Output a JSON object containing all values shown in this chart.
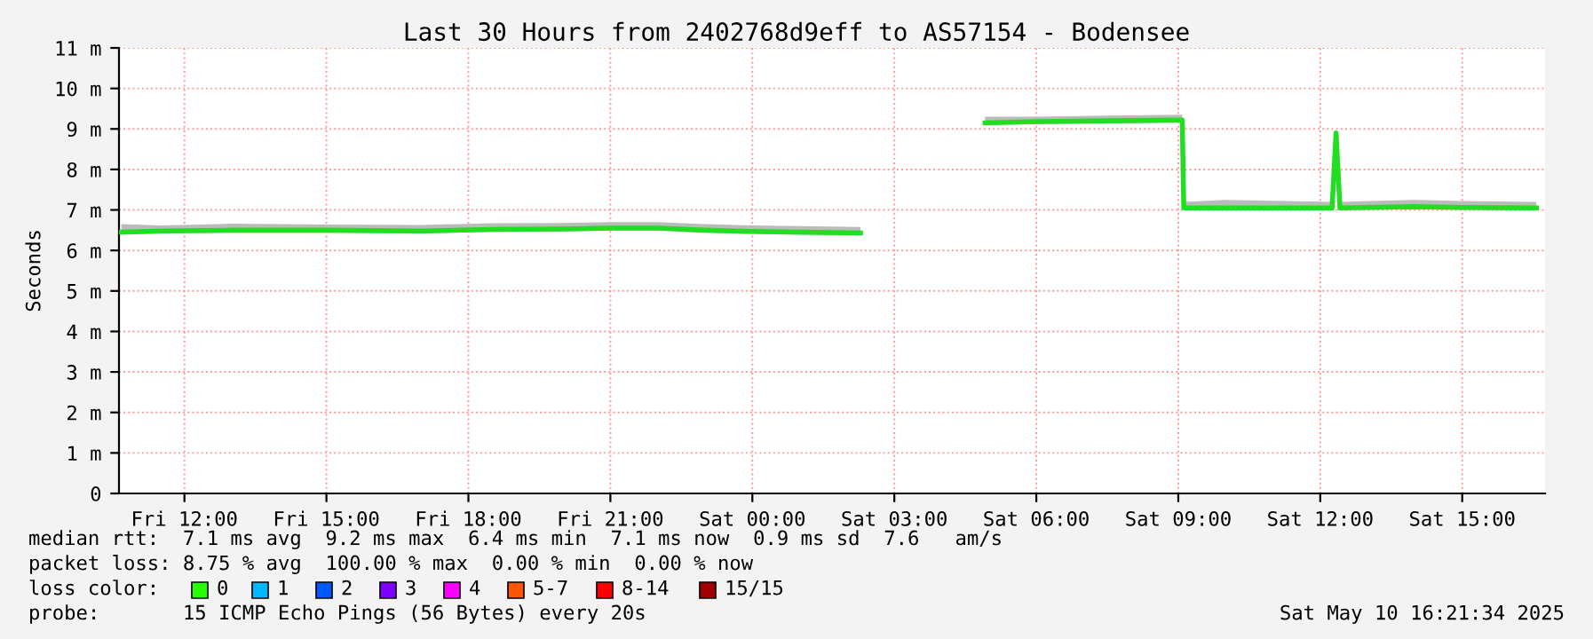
{
  "chart_data": {
    "type": "line",
    "title": "Last 30 Hours from 2402768d9eff to AS57154 - Bodensee",
    "ylabel": "Seconds",
    "x": [
      "2025-05-09T10:40",
      "2025-05-09T11:30",
      "2025-05-09T13:00",
      "2025-05-09T15:00",
      "2025-05-09T17:00",
      "2025-05-09T18:30",
      "2025-05-09T20:00",
      "2025-05-09T21:00",
      "2025-05-09T22:00",
      "2025-05-09T23:00",
      "2025-05-10T00:00",
      "2025-05-10T01:00",
      "2025-05-10T02:17",
      "2025-05-10T03:30",
      "2025-05-10T04:55",
      "2025-05-10T06:00",
      "2025-05-10T07:30",
      "2025-05-10T09:05",
      "2025-05-10T09:07",
      "2025-05-10T10:00",
      "2025-05-10T12:15",
      "2025-05-10T12:20",
      "2025-05-10T12:25",
      "2025-05-10T14:00",
      "2025-05-10T15:00",
      "2025-05-10T16:34"
    ],
    "series": [
      {
        "color": "#22dd22",
        "values": [
          6.45,
          6.48,
          6.5,
          6.5,
          6.48,
          6.52,
          6.53,
          6.55,
          6.55,
          6.5,
          6.47,
          6.45,
          6.43,
          null,
          9.15,
          9.18,
          9.2,
          9.22,
          7.05,
          7.05,
          7.05,
          8.9,
          7.05,
          7.08,
          7.06,
          7.05
        ],
        "lower": [
          6.4,
          6.42,
          6.44,
          6.44,
          6.42,
          6.46,
          6.47,
          6.49,
          6.49,
          6.44,
          6.41,
          6.4,
          6.38,
          null,
          9.1,
          9.12,
          9.14,
          9.16,
          7.0,
          7.0,
          7.0,
          8.8,
          7.0,
          7.02,
          7.0,
          7.0
        ],
        "upper": [
          6.65,
          6.62,
          6.66,
          6.64,
          6.63,
          6.67,
          6.68,
          6.7,
          6.7,
          6.65,
          6.62,
          6.6,
          6.58,
          null,
          9.3,
          9.3,
          9.33,
          9.35,
          7.2,
          7.25,
          7.2,
          9.0,
          7.2,
          7.25,
          7.22,
          7.2
        ]
      }
    ],
    "xlim": [
      "2025-05-09T10:37",
      "2025-05-10T16:45"
    ],
    "xticks": [
      {
        "value": "2025-05-09T12:00",
        "label": "Fri 12:00"
      },
      {
        "value": "2025-05-09T15:00",
        "label": "Fri 15:00"
      },
      {
        "value": "2025-05-09T18:00",
        "label": "Fri 18:00"
      },
      {
        "value": "2025-05-09T21:00",
        "label": "Fri 21:00"
      },
      {
        "value": "2025-05-10T00:00",
        "label": "Sat 00:00"
      },
      {
        "value": "2025-05-10T03:00",
        "label": "Sat 03:00"
      },
      {
        "value": "2025-05-10T06:00",
        "label": "Sat 06:00"
      },
      {
        "value": "2025-05-10T09:00",
        "label": "Sat 09:00"
      },
      {
        "value": "2025-05-10T12:00",
        "label": "Sat 12:00"
      },
      {
        "value": "2025-05-10T15:00",
        "label": "Sat 15:00"
      }
    ],
    "ylim": [
      0,
      11
    ],
    "yticks": [
      0,
      {
        "value": 1,
        "label": "1 m"
      },
      {
        "value": 2,
        "label": "2 m"
      },
      {
        "value": 3,
        "label": "3 m"
      },
      {
        "value": 4,
        "label": "4 m"
      },
      {
        "value": 5,
        "label": "5 m"
      },
      {
        "value": 6,
        "label": "6 m"
      },
      {
        "value": 7,
        "label": "7 m"
      },
      {
        "value": 8,
        "label": "8 m"
      },
      {
        "value": 9,
        "label": "9 m"
      },
      {
        "value": 10,
        "label": "10 m"
      },
      {
        "value": 11,
        "label": "11 m"
      }
    ],
    "grid": true,
    "marker": "none",
    "line_style": "solid",
    "annotations": [
      "median rtt:  7.1 ms avg  9.2 ms max  6.4 ms min  7.1 ms now  0.9 ms sd  7.6   am/s",
      "packet loss: 8.75 % avg  100.00 % max  0.00 % min  0.00 % now",
      "loss color:",
      "0",
      "1",
      "2",
      "3",
      "4",
      "5-7",
      "8-14",
      "15/15",
      "probe:       15 ICMP Echo Pings (56 Bytes) every 20s",
      "Sat May 10 16:21:34 2025"
    ]
  }
}
